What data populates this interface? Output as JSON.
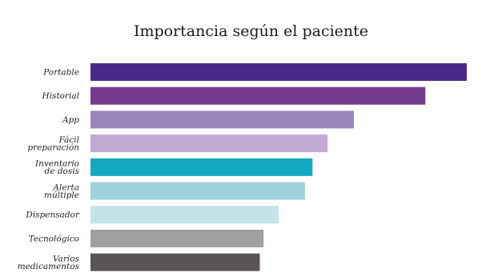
{
  "chart_data": {
    "type": "bar",
    "orientation": "horizontal",
    "title": "Importancia según el paciente",
    "xlabel": "",
    "ylabel": "",
    "grid": false,
    "legend": "none",
    "categories": [
      "Portable",
      "Historial",
      "App",
      "Fácil preparación",
      "Inventario de dosis",
      "Alerta múltiple",
      "Dispensador",
      "Tecnológico",
      "Varios medicamentos"
    ],
    "category_lines": [
      [
        "Portable"
      ],
      [
        "Historial"
      ],
      [
        "App"
      ],
      [
        "Fácil",
        "preparación"
      ],
      [
        "Inventario",
        "de dosis"
      ],
      [
        "Alerta",
        "múltiple"
      ],
      [
        "Dispensador"
      ],
      [
        "Tecnológico"
      ],
      [
        "Varios",
        "medicamentos"
      ]
    ],
    "values": [
      100,
      89,
      70,
      63,
      59,
      57,
      50,
      46,
      45
    ],
    "xlim": [
      0,
      100
    ],
    "colors": [
      "#4b2a86",
      "#753b8d",
      "#9a86bd",
      "#c1a9d4",
      "#12a8c2",
      "#9fd2dc",
      "#c4e3ea",
      "#a29fa3",
      "#5a5458"
    ]
  }
}
